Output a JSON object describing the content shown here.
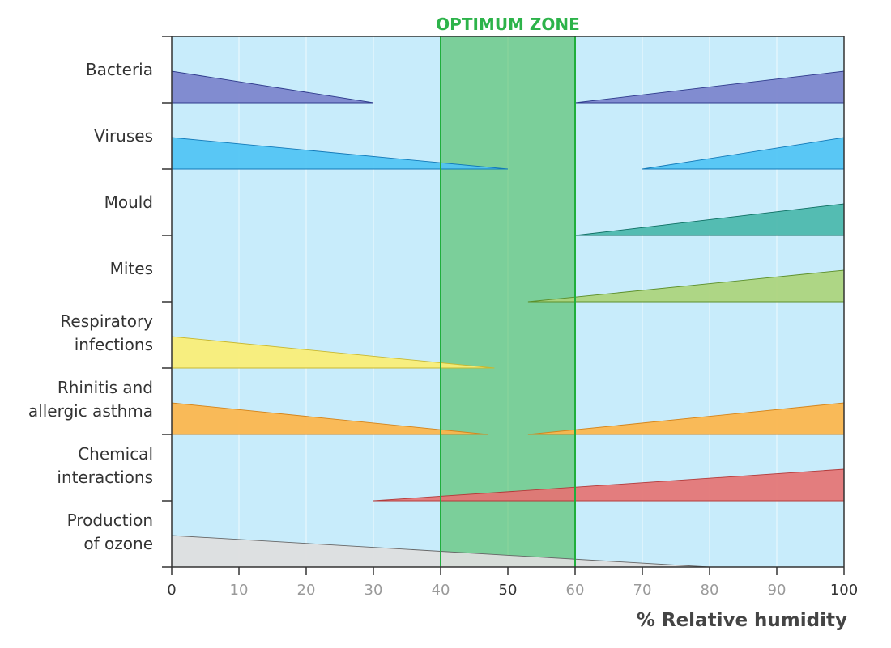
{
  "chart_data": {
    "type": "area",
    "title": "OPTIMUM ZONE",
    "xlabel": "% Relative humidity",
    "xlim": [
      0,
      100
    ],
    "x_ticks": [
      0,
      10,
      20,
      30,
      40,
      50,
      60,
      70,
      80,
      90,
      100
    ],
    "x_tick_labels": [
      "0",
      "10",
      "20",
      "30",
      "40",
      "50",
      "60",
      "70",
      "80",
      "90",
      "100"
    ],
    "emphasized_ticks": [
      0,
      50,
      100
    ],
    "optimum_zone": {
      "label": "OPTIMUM ZONE",
      "from": 40,
      "to": 60,
      "color": "#2db34a"
    },
    "grid": true,
    "background_color": "#c8ecfb",
    "series": [
      {
        "name": "Bacteria",
        "color": "#7b83cc",
        "edge": "#2e3a8c",
        "segments": [
          {
            "x_start": 0,
            "x_end": 30,
            "peak": "left"
          },
          {
            "x_start": 60,
            "x_end": 100,
            "peak": "right"
          }
        ]
      },
      {
        "name": "Viruses",
        "color": "#4fc3f4",
        "edge": "#1279b8",
        "segments": [
          {
            "x_start": 0,
            "x_end": 50,
            "peak": "left"
          },
          {
            "x_start": 70,
            "x_end": 100,
            "peak": "right"
          }
        ]
      },
      {
        "name": "Mould",
        "color": "#4ab7ab",
        "edge": "#0d6e62",
        "segments": [
          {
            "x_start": 60,
            "x_end": 100,
            "peak": "right"
          }
        ]
      },
      {
        "name": "Mites",
        "color": "#abd47b",
        "edge": "#5c8f2a",
        "segments": [
          {
            "x_start": 53,
            "x_end": 100,
            "peak": "right"
          }
        ]
      },
      {
        "name": "Respiratory infections",
        "color": "#fbee74",
        "edge": "#c8b830",
        "segments": [
          {
            "x_start": 0,
            "x_end": 48,
            "peak": "left"
          }
        ]
      },
      {
        "name": "Rhinitis and allergic asthma",
        "color": "#fdb54a",
        "edge": "#d5841a",
        "segments": [
          {
            "x_start": 0,
            "x_end": 47,
            "peak": "left"
          },
          {
            "x_start": 53,
            "x_end": 100,
            "peak": "right"
          }
        ]
      },
      {
        "name": "Chemical interactions",
        "color": "#e57373",
        "edge": "#b33a3a",
        "segments": [
          {
            "x_start": 30,
            "x_end": 100,
            "peak": "right"
          }
        ]
      },
      {
        "name": "Production of ozone",
        "color": "#dedede",
        "edge": "#666666",
        "segments": [
          {
            "x_start": 0,
            "x_end": 80,
            "peak": "left"
          }
        ]
      }
    ]
  },
  "row_labels": [
    [
      "Bacteria"
    ],
    [
      "Viruses"
    ],
    [
      "Mould"
    ],
    [
      "Mites"
    ],
    [
      "Respiratory",
      "infections"
    ],
    [
      "Rhinitis and",
      "allergic asthma"
    ],
    [
      "Chemical",
      "interactions"
    ],
    [
      "Production",
      "of ozone"
    ]
  ]
}
